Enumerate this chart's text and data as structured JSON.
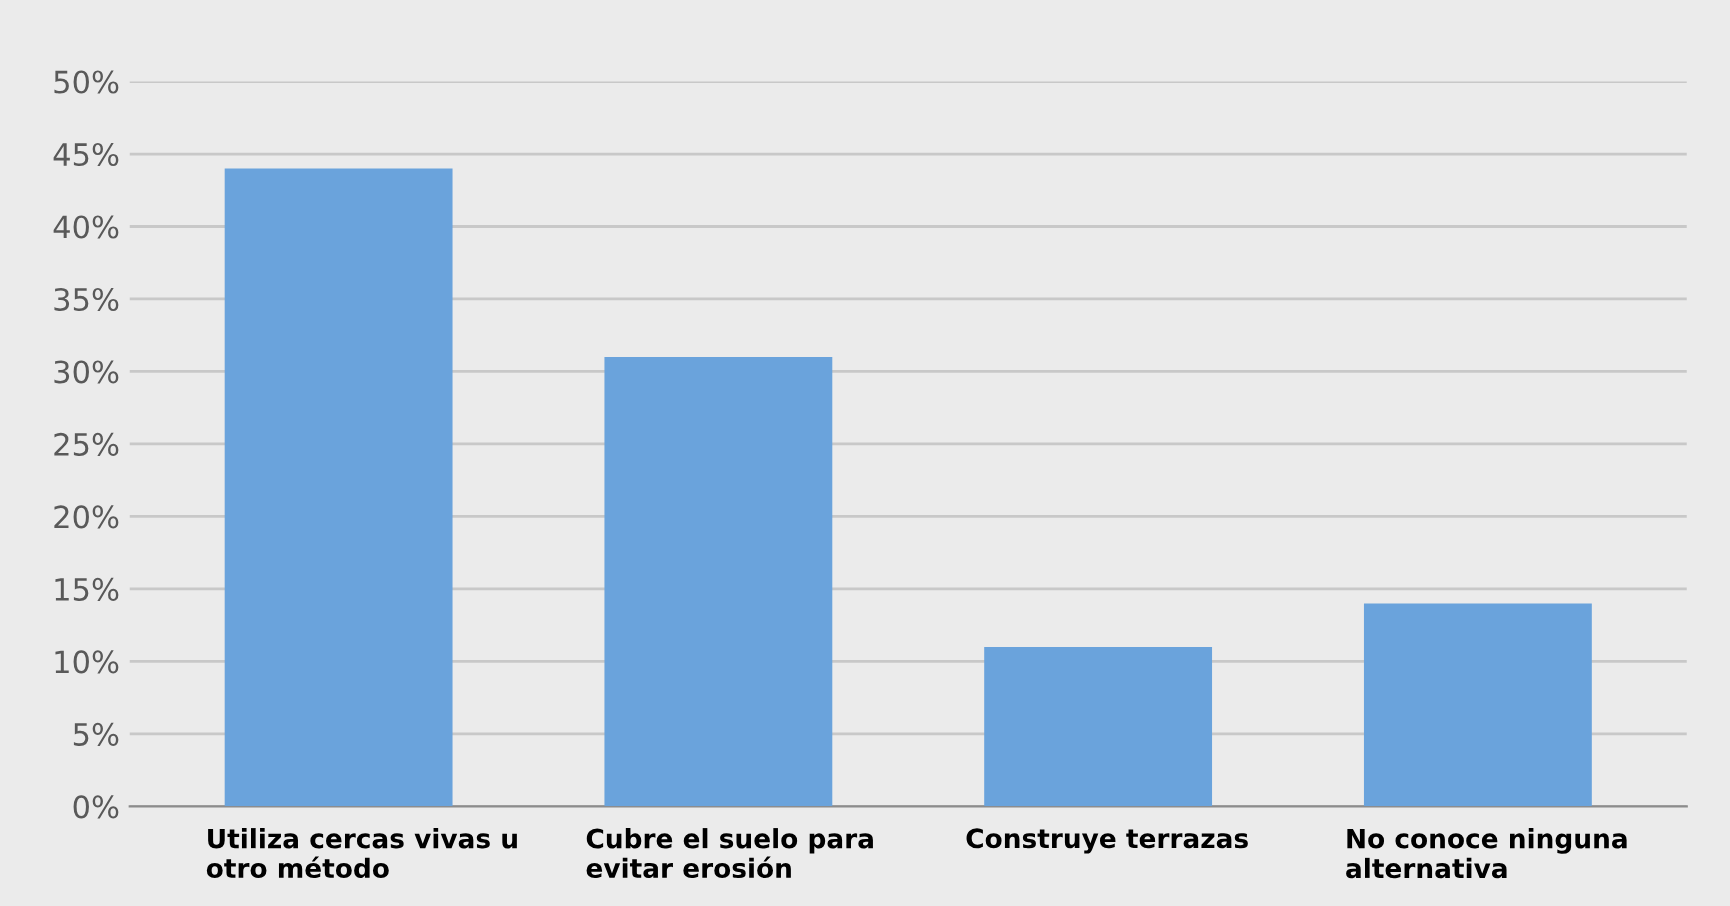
{
  "chart_data": {
    "type": "bar",
    "categories": [
      "Utiliza cercas vivas u\notro método",
      "Cubre el suelo para\nevitar erosión",
      "Construye terrazas",
      "No conoce ninguna\nalternativa"
    ],
    "values": [
      44,
      31,
      11,
      14
    ],
    "color": "#6aa3dc",
    "ylim": [
      0,
      50
    ],
    "yticks": [
      {
        "value": 0,
        "label": "0%"
      },
      {
        "value": 5,
        "label": "5%"
      },
      {
        "value": 10,
        "label": "10%"
      },
      {
        "value": 15,
        "label": "15%"
      },
      {
        "value": 20,
        "label": "20%"
      },
      {
        "value": 25,
        "label": "25%"
      },
      {
        "value": 30,
        "label": "30%"
      },
      {
        "value": 35,
        "label": "35%"
      },
      {
        "value": 40,
        "label": "40%"
      },
      {
        "value": 45,
        "label": "45%"
      },
      {
        "value": 50,
        "label": "50%"
      }
    ],
    "grid": "y",
    "legend": false
  }
}
